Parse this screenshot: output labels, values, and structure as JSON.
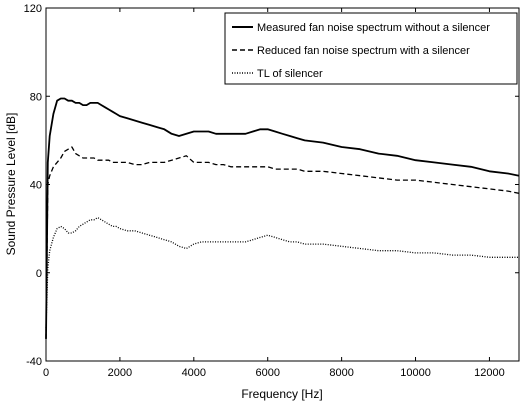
{
  "chart_data": {
    "type": "line",
    "title": "",
    "xlabel": "Frequency [Hz]",
    "ylabel": "Sound Pressure Level [dB]",
    "xlim": [
      0,
      12800
    ],
    "ylim": [
      -40,
      120
    ],
    "x_ticks": [
      0,
      2000,
      4000,
      6000,
      8000,
      10000,
      12000
    ],
    "y_ticks": [
      -40,
      0,
      40,
      80,
      120
    ],
    "x_tick_labels": [
      "0",
      "2000",
      "4000",
      "6000",
      "8000",
      "10000",
      "12000"
    ],
    "y_tick_labels": [
      "-40",
      "0",
      "40",
      "80",
      "120"
    ],
    "grid": false,
    "legend_position": "top-right",
    "series": [
      {
        "name": "Measured fan noise spectrum without a silencer",
        "line_style": "solid",
        "color": "#000000",
        "x": [
          0,
          50,
          100,
          200,
          300,
          400,
          500,
          600,
          700,
          800,
          900,
          1000,
          1100,
          1200,
          1300,
          1400,
          1500,
          1600,
          1700,
          1800,
          1900,
          2000,
          2200,
          2400,
          2600,
          2800,
          3000,
          3200,
          3400,
          3600,
          3800,
          4000,
          4200,
          4400,
          4600,
          4800,
          5000,
          5200,
          5400,
          5600,
          5800,
          6000,
          6200,
          6400,
          6600,
          6800,
          7000,
          7500,
          8000,
          8500,
          9000,
          9500,
          10000,
          10500,
          11000,
          11500,
          12000,
          12500,
          12800
        ],
        "y": [
          -30,
          50,
          62,
          72,
          78,
          79,
          79,
          78,
          78,
          77,
          77,
          76,
          76,
          77,
          77,
          77,
          76,
          75,
          74,
          73,
          72,
          71,
          70,
          69,
          68,
          67,
          66,
          65,
          63,
          62,
          63,
          64,
          64,
          64,
          63,
          63,
          63,
          63,
          63,
          64,
          65,
          65,
          64,
          63,
          62,
          61,
          60,
          59,
          57,
          56,
          54,
          53,
          51,
          50,
          49,
          48,
          46,
          45,
          44
        ]
      },
      {
        "name": "Reduced fan noise spectrum with a silencer",
        "line_style": "dashed",
        "color": "#000000",
        "x": [
          0,
          50,
          100,
          200,
          300,
          400,
          500,
          600,
          700,
          800,
          900,
          1000,
          1100,
          1200,
          1300,
          1400,
          1500,
          1600,
          1700,
          1800,
          1900,
          2000,
          2200,
          2400,
          2600,
          2800,
          3000,
          3200,
          3400,
          3600,
          3800,
          4000,
          4200,
          4400,
          4600,
          4800,
          5000,
          5200,
          5400,
          5600,
          5800,
          6000,
          6200,
          6400,
          6600,
          6800,
          7000,
          7500,
          8000,
          8500,
          9000,
          9500,
          10000,
          10500,
          11000,
          11500,
          12000,
          12500,
          12800
        ],
        "y": [
          -30,
          40,
          44,
          48,
          50,
          52,
          55,
          56,
          57,
          54,
          53,
          52,
          52,
          52,
          52,
          51,
          51,
          51,
          51,
          50,
          50,
          50,
          50,
          49,
          49,
          50,
          50,
          50,
          51,
          52,
          53,
          50,
          50,
          50,
          49,
          49,
          48,
          48,
          48,
          48,
          48,
          48,
          47,
          47,
          47,
          47,
          46,
          46,
          45,
          44,
          43,
          42,
          42,
          41,
          40,
          39,
          38,
          37,
          36
        ]
      },
      {
        "name": "TL of silencer",
        "line_style": "dotted",
        "color": "#000000",
        "x": [
          0,
          50,
          100,
          200,
          300,
          400,
          500,
          600,
          700,
          800,
          900,
          1000,
          1100,
          1200,
          1300,
          1400,
          1500,
          1600,
          1700,
          1800,
          1900,
          2000,
          2200,
          2400,
          2600,
          2800,
          3000,
          3200,
          3400,
          3600,
          3800,
          4000,
          4200,
          4400,
          4600,
          4800,
          5000,
          5200,
          5400,
          5600,
          5800,
          6000,
          6200,
          6400,
          6600,
          6800,
          7000,
          7500,
          8000,
          8500,
          9000,
          9500,
          10000,
          10500,
          11000,
          11500,
          12000,
          12500,
          12800
        ],
        "y": [
          -25,
          2,
          10,
          16,
          20,
          21,
          20,
          18,
          18,
          19,
          21,
          22,
          23,
          24,
          24,
          25,
          24,
          23,
          22,
          21,
          21,
          20,
          19,
          19,
          18,
          17,
          16,
          15,
          14,
          12,
          11,
          13,
          14,
          14,
          14,
          14,
          14,
          14,
          14,
          15,
          16,
          17,
          16,
          15,
          14,
          14,
          13,
          13,
          12,
          11,
          10,
          10,
          9,
          9,
          8,
          8,
          7,
          7,
          7
        ]
      }
    ]
  }
}
